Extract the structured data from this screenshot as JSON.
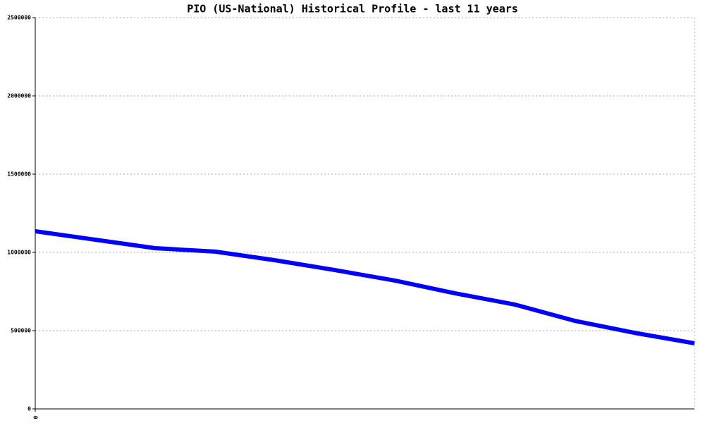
{
  "chart_data": {
    "type": "line",
    "title": "PIO (US-National) Historical Profile - last 11 years",
    "x": [
      0,
      1,
      2,
      3,
      4,
      5,
      6,
      7,
      8,
      9,
      10,
      11
    ],
    "series": [
      {
        "name": "PIO",
        "color": "#0000ff",
        "values": [
          1135000,
          1081000,
          1027000,
          1005000,
          950000,
          887000,
          820000,
          739000,
          667000,
          563000,
          486000,
          419000
        ]
      }
    ],
    "xlim": [
      0,
      11
    ],
    "xticks": [
      0
    ],
    "ylim": [
      0,
      2500000
    ],
    "yticks": [
      0,
      500000,
      1000000,
      1500000,
      2000000,
      2500000
    ],
    "grid": true
  }
}
